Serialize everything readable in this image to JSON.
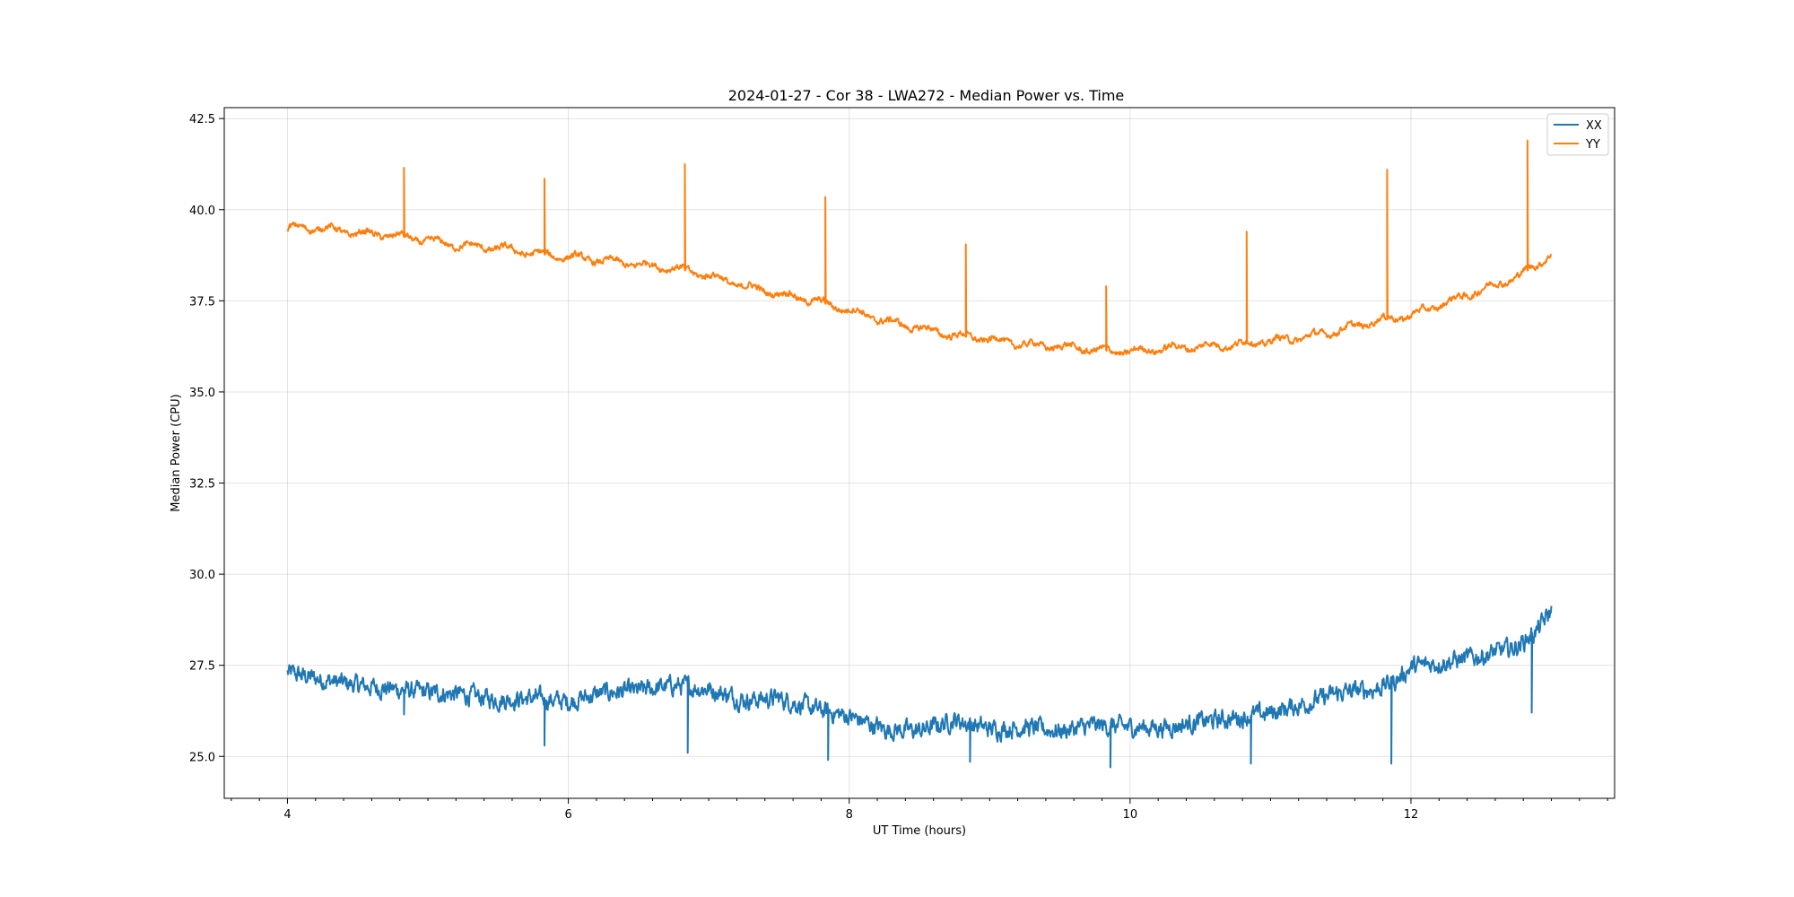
{
  "chart_data": {
    "type": "line",
    "title": "2024-01-27 - Cor 38 - LWA272 - Median Power vs. Time",
    "xlabel": "UT Time (hours)",
    "ylabel": "Median Power (CPU)",
    "xlim": [
      3.55,
      13.45
    ],
    "ylim": [
      23.85,
      42.8
    ],
    "xticks": [
      4,
      6,
      8,
      10,
      12
    ],
    "xtick_labels": [
      "4",
      "6",
      "8",
      "10",
      "12"
    ],
    "yticks": [
      25.0,
      27.5,
      30.0,
      32.5,
      35.0,
      37.5,
      40.0,
      42.5
    ],
    "ytick_labels": [
      "25.0",
      "27.5",
      "30.0",
      "32.5",
      "35.0",
      "37.5",
      "40.0",
      "42.5"
    ],
    "grid": true,
    "legend_position": "top-right",
    "series": [
      {
        "name": "XX",
        "color": "#1f77b4",
        "x": [
          4.0,
          4.25,
          4.5,
          4.75,
          5.0,
          5.25,
          5.5,
          5.75,
          6.0,
          6.25,
          6.5,
          6.75,
          7.0,
          7.25,
          7.5,
          7.75,
          8.0,
          8.25,
          8.5,
          8.75,
          9.0,
          9.25,
          9.5,
          9.75,
          10.0,
          10.25,
          10.5,
          10.75,
          11.0,
          11.25,
          11.5,
          11.75,
          11.9,
          12.0,
          12.25,
          12.5,
          12.75,
          12.9,
          13.0
        ],
        "y": [
          27.3,
          27.1,
          26.95,
          26.85,
          26.75,
          26.7,
          26.55,
          26.6,
          26.5,
          26.75,
          26.8,
          26.95,
          26.85,
          26.55,
          26.6,
          26.3,
          26.1,
          25.75,
          25.7,
          26.0,
          25.75,
          25.8,
          25.7,
          25.85,
          25.8,
          25.8,
          25.95,
          26.05,
          26.2,
          26.45,
          26.75,
          26.85,
          27.1,
          27.45,
          27.6,
          27.75,
          28.0,
          28.45,
          29.0
        ],
        "noise": 0.18,
        "spikes": [
          {
            "x": 4.83,
            "y": 26.15
          },
          {
            "x": 5.83,
            "y": 25.3
          },
          {
            "x": 6.85,
            "y": 25.1
          },
          {
            "x": 7.85,
            "y": 24.9
          },
          {
            "x": 8.86,
            "y": 24.85
          },
          {
            "x": 9.86,
            "y": 24.7
          },
          {
            "x": 10.86,
            "y": 24.8
          },
          {
            "x": 11.86,
            "y": 24.8
          },
          {
            "x": 12.86,
            "y": 26.2
          }
        ]
      },
      {
        "name": "YY",
        "color": "#ff7f0e",
        "x": [
          4.0,
          4.25,
          4.5,
          4.75,
          5.0,
          5.25,
          5.5,
          5.75,
          6.0,
          6.25,
          6.5,
          6.75,
          7.0,
          7.25,
          7.5,
          7.75,
          8.0,
          8.25,
          8.5,
          8.75,
          9.0,
          9.25,
          9.5,
          9.75,
          10.0,
          10.25,
          10.5,
          10.75,
          11.0,
          11.25,
          11.5,
          11.75,
          12.0,
          12.25,
          12.5,
          12.75,
          12.9,
          13.0
        ],
        "y": [
          39.5,
          39.5,
          39.35,
          39.3,
          39.15,
          39.0,
          38.95,
          38.8,
          38.7,
          38.6,
          38.5,
          38.4,
          38.2,
          37.9,
          37.7,
          37.5,
          37.25,
          36.95,
          36.75,
          36.55,
          36.45,
          36.3,
          36.25,
          36.15,
          36.1,
          36.2,
          36.25,
          36.3,
          36.4,
          36.5,
          36.7,
          36.95,
          37.1,
          37.45,
          37.8,
          38.15,
          38.5,
          38.8
        ],
        "noise": 0.06,
        "spikes": [
          {
            "x": 4.83,
            "y": 41.15
          },
          {
            "x": 5.83,
            "y": 40.85
          },
          {
            "x": 6.83,
            "y": 41.25
          },
          {
            "x": 7.83,
            "y": 40.35
          },
          {
            "x": 8.83,
            "y": 39.05
          },
          {
            "x": 9.83,
            "y": 37.9
          },
          {
            "x": 10.83,
            "y": 39.4
          },
          {
            "x": 11.83,
            "y": 41.1
          },
          {
            "x": 12.83,
            "y": 41.9
          }
        ]
      }
    ]
  }
}
